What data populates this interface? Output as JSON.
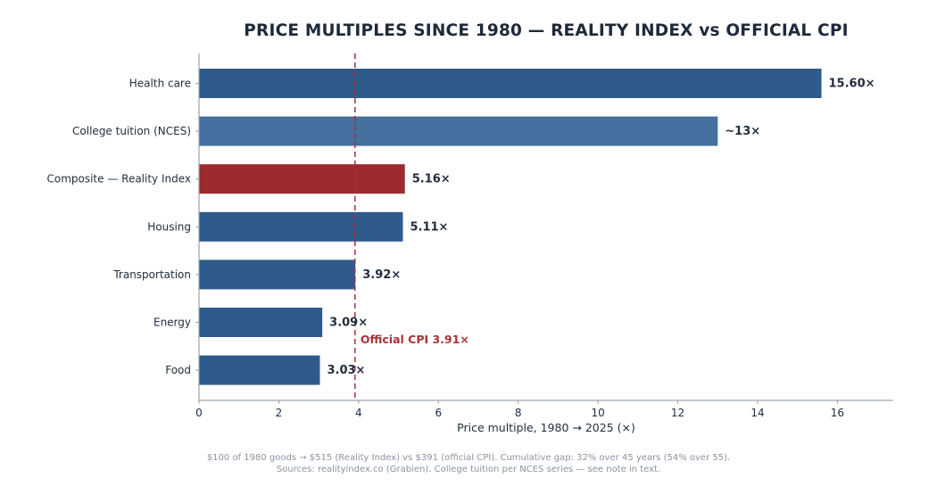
{
  "chart_data": {
    "type": "bar",
    "orientation": "horizontal",
    "title": "PRICE MULTIPLES SINCE 1980 — REALITY INDEX vs OFFICIAL CPI",
    "xlabel": "Price multiple, 1980 → 2025 (×)",
    "ylabel": "",
    "xlim": [
      0,
      17.4
    ],
    "xticks": [
      0,
      2,
      4,
      6,
      8,
      10,
      12,
      14,
      16
    ],
    "grid": false,
    "categories": [
      "Health care",
      "College tuition (NCES)",
      "Composite — Reality Index",
      "Housing",
      "Transportation",
      "Energy",
      "Food"
    ],
    "values": [
      15.6,
      13,
      5.16,
      5.11,
      3.92,
      3.09,
      3.03
    ],
    "data_labels": [
      "15.60×",
      "~13×",
      "5.16×",
      "5.11×",
      "3.92×",
      "3.09×",
      "3.03×"
    ],
    "bar_colors": [
      "#2e5b8b",
      "#4570a0",
      "#9d2a2e",
      "#2e5b8b",
      "#2e5b8b",
      "#2e5b8b",
      "#2e5b8b"
    ],
    "reference_line": {
      "value": 3.91,
      "label": "Official CPI 3.91×",
      "color": "#a83236",
      "style": "dashed"
    }
  },
  "footnotes": [
    "$100 of 1980 goods → $515 (Reality Index) vs $391 (official CPI). Cumulative gap: 32% over 45 years (54% over 55).",
    "Sources: realityindex.co (Grabien). College tuition per NCES series — see note in text."
  ],
  "colors": {
    "axis": "#9aa3ad",
    "text": "#1f2d3d",
    "footnote": "#8a93a0"
  }
}
